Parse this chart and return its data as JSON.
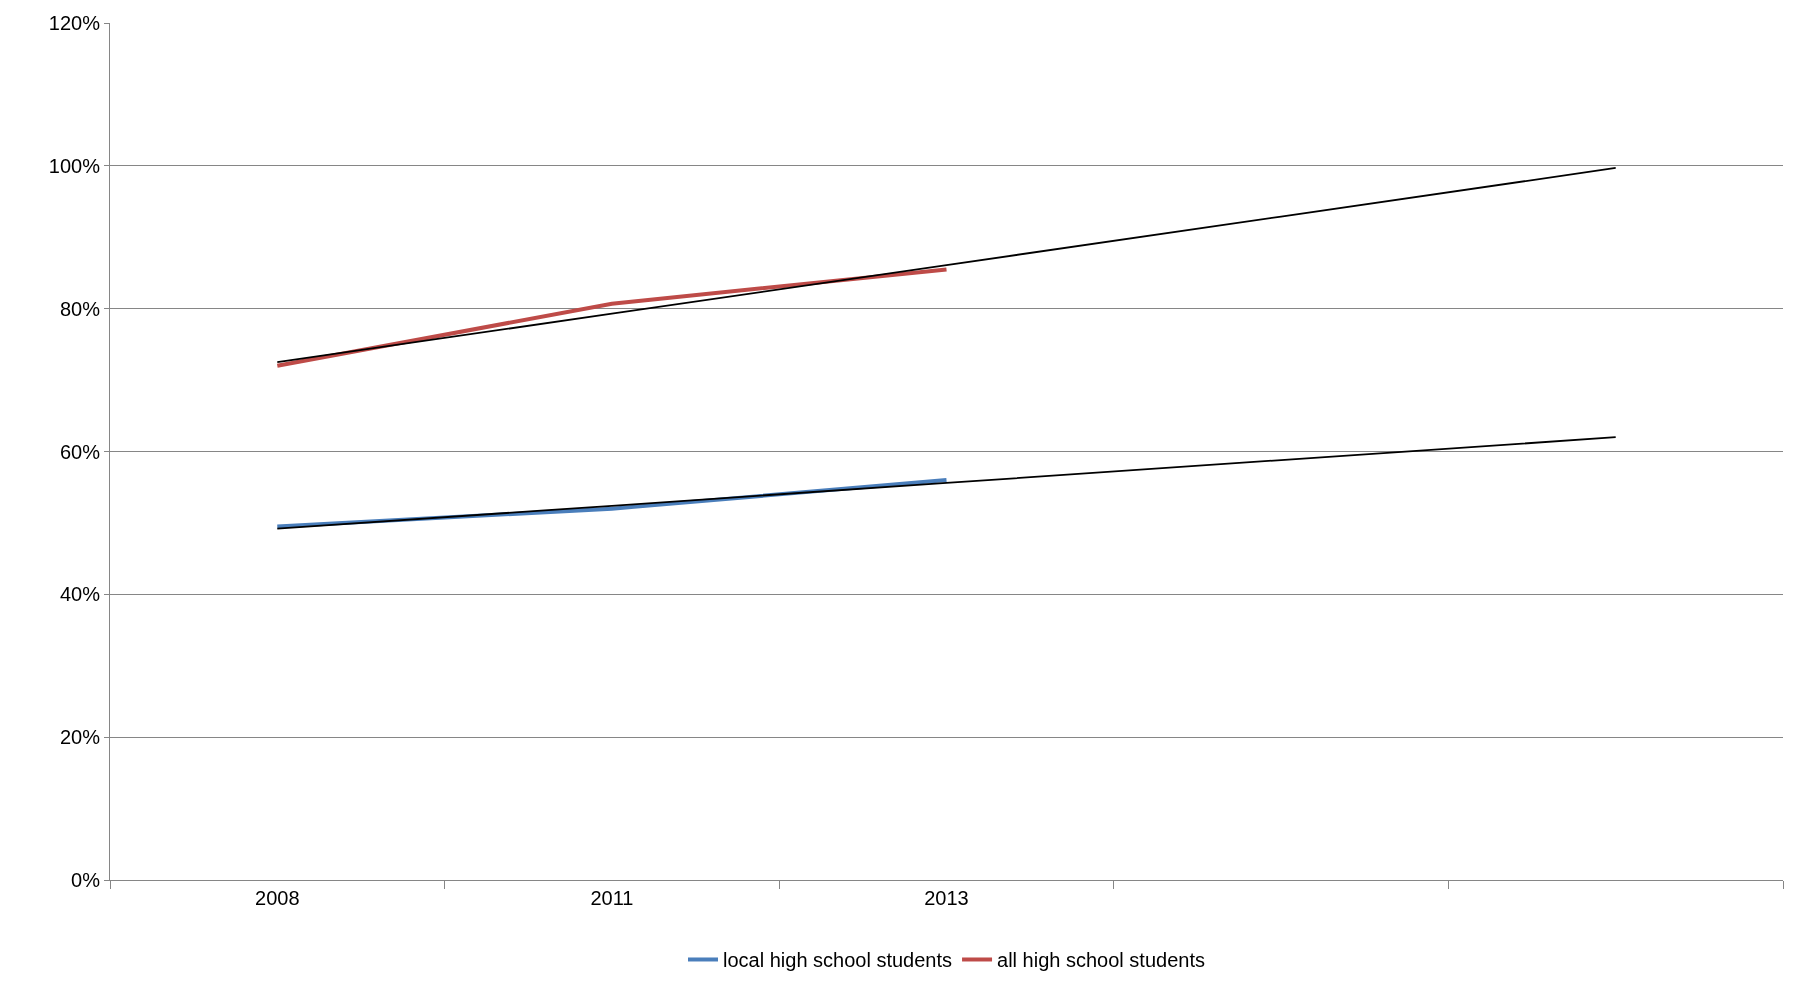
{
  "chart_data": {
    "type": "line",
    "categories": [
      "2008",
      "2011",
      "2013",
      null,
      null
    ],
    "series": [
      {
        "name": "local high school students",
        "color": "#4a7ebb",
        "values": [
          49.5,
          52,
          56,
          null,
          null
        ]
      },
      {
        "name": "all high school students",
        "color": "#be4b48",
        "values": [
          72,
          80.7,
          85.5,
          null,
          null
        ]
      },
      {
        "color": "#000000",
        "values": [
          49.2,
          52.4,
          55.6,
          58.8,
          62
        ]
      },
      {
        "color": "#000000",
        "values": [
          72.5,
          79.3,
          86.1,
          92.9,
          99.7
        ]
      }
    ],
    "ylim": [
      0,
      120
    ],
    "yticks": [
      {
        "value": 0,
        "label": "0%"
      },
      {
        "value": 20,
        "label": "20%"
      },
      {
        "value": 40,
        "label": "40%"
      },
      {
        "value": 60,
        "label": "60%"
      },
      {
        "value": 80,
        "label": "80%"
      },
      {
        "value": 100,
        "label": "100%"
      },
      {
        "value": 120,
        "label": "120%"
      }
    ],
    "grid": "y",
    "legend": "bottom",
    "marker": "none",
    "line_style": "solid"
  }
}
